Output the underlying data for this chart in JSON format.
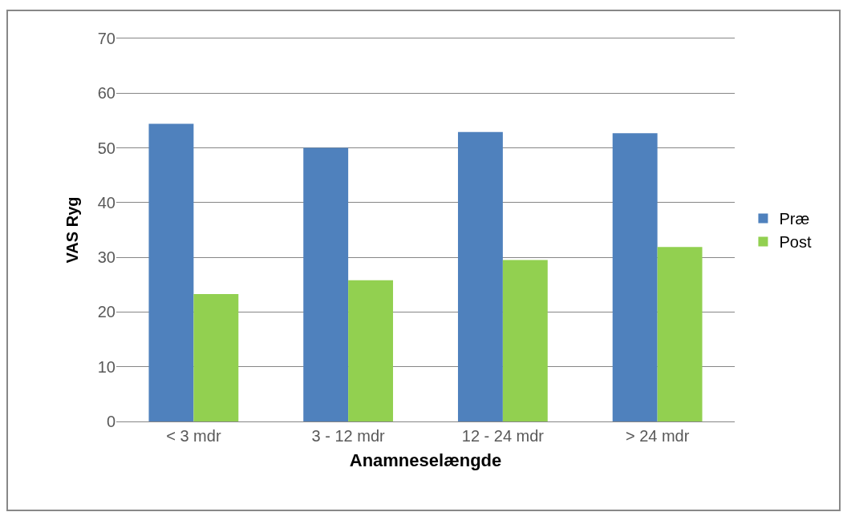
{
  "chart_data": {
    "type": "bar",
    "categories": [
      "< 3 mdr",
      "3 - 12 mdr",
      "12 - 24 mdr",
      "> 24 mdr"
    ],
    "series": [
      {
        "name": "Præ",
        "color": "#4f81bd",
        "values": [
          54.4,
          50.0,
          52.9,
          52.7
        ]
      },
      {
        "name": "Post",
        "color": "#92d050",
        "values": [
          23.3,
          25.8,
          29.5,
          31.9
        ]
      }
    ],
    "xlabel": "Anamneselængde",
    "ylabel": "VAS Ryg",
    "ylim": [
      0,
      70
    ],
    "yticks": [
      0,
      10,
      20,
      30,
      40,
      50,
      60,
      70
    ],
    "grid": "y",
    "legend": "right"
  }
}
